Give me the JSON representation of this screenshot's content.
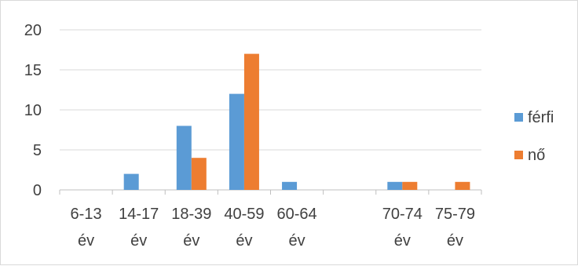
{
  "chart_data": {
    "type": "bar",
    "categories": [
      [
        "6-13",
        "év"
      ],
      [
        "14-17",
        "év"
      ],
      [
        "18-39",
        "év"
      ],
      [
        "40-59",
        "év"
      ],
      [
        "60-64",
        "év"
      ],
      [
        "",
        ""
      ],
      [
        "70-74",
        "év"
      ],
      [
        "75-79",
        "év"
      ]
    ],
    "series": [
      {
        "name": "férfi",
        "values": [
          0,
          2,
          8,
          12,
          1,
          0,
          1,
          0
        ],
        "color": "#5b9bd5"
      },
      {
        "name": "nő",
        "values": [
          0,
          0,
          4,
          17,
          0,
          0,
          1,
          1
        ],
        "color": "#ed7d31"
      }
    ],
    "ylim": [
      0,
      20
    ],
    "yticks": [
      0,
      5,
      10,
      15,
      20
    ],
    "grid": true,
    "legend_position": "right",
    "title": "",
    "xlabel": "",
    "ylabel": ""
  }
}
